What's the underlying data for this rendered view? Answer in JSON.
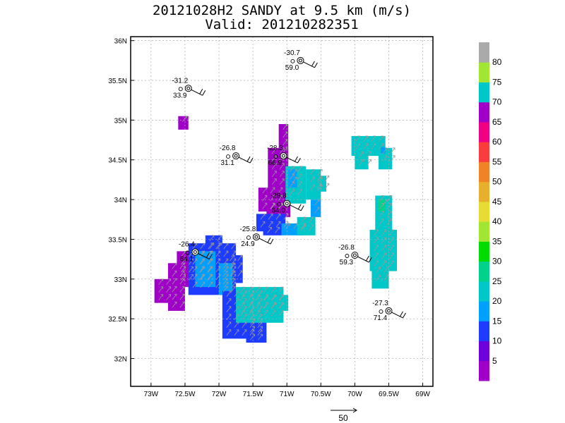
{
  "header": {
    "title": "20121028H2 SANDY at 9.5 km (m/s)",
    "valid": "Valid: 201210282351"
  },
  "chart_data": {
    "type": "heatmap",
    "xlabel": "",
    "ylabel": "",
    "xlim": [
      -73.3,
      -68.85
    ],
    "ylim": [
      31.65,
      36.05
    ],
    "x_ticks": [
      -73,
      -72.5,
      -72,
      -71.5,
      -71,
      -70.5,
      -70,
      -69.5,
      -69
    ],
    "x_tick_labels": [
      "73W",
      "72.5W",
      "72W",
      "71.5W",
      "71W",
      "70.5W",
      "70W",
      "69.5W",
      "69W"
    ],
    "y_ticks": [
      32,
      32.5,
      33,
      33.5,
      34,
      34.5,
      35,
      35.5,
      36
    ],
    "y_tick_labels": [
      "32N",
      "32.5N",
      "33N",
      "33.5N",
      "34N",
      "34.5N",
      "35N",
      "35.5N",
      "36N"
    ],
    "grid": true,
    "colorbar": {
      "labels": [
        "5",
        "10",
        "15",
        "20",
        "25",
        "30",
        "35",
        "40",
        "45",
        "50",
        "55",
        "60",
        "65",
        "70",
        "75",
        "80"
      ],
      "colors": [
        "#a000c8",
        "#6e00dc",
        "#1e3cff",
        "#00a0ff",
        "#00c8c8",
        "#00d28c",
        "#00dc00",
        "#a0e632",
        "#e6dc32",
        "#e6af2d",
        "#f08228",
        "#fa3c3c",
        "#f00082",
        "#a000c8",
        "#00c8c8",
        "#a0e632",
        "#aaaaaa"
      ]
    },
    "reference_vector": {
      "label": "50",
      "value": 50
    },
    "regions": [
      {
        "name": "north-tiny",
        "color": "#a000c8",
        "rects": [
          [
            -72.6,
            -72.45,
            34.88,
            35.05
          ]
        ]
      },
      {
        "name": "central-purple",
        "color": "#a000c8",
        "rects": [
          [
            -71.12,
            -70.98,
            34.45,
            34.95
          ],
          [
            -71.28,
            -70.98,
            34.1,
            34.65
          ],
          [
            -71.42,
            -71.0,
            33.85,
            34.15
          ],
          [
            -71.3,
            -70.95,
            33.78,
            33.95
          ]
        ]
      },
      {
        "name": "central-cyan",
        "color": "#00c8c8",
        "rects": [
          [
            -71.02,
            -70.72,
            33.95,
            34.42
          ],
          [
            -70.72,
            -70.5,
            34.0,
            34.38
          ],
          [
            -70.62,
            -70.42,
            34.1,
            34.3
          ]
        ]
      },
      {
        "name": "central-blue",
        "color": "#00a0ff",
        "rects": [
          [
            -70.98,
            -70.85,
            34.15,
            34.38
          ],
          [
            -70.65,
            -70.5,
            33.78,
            34.0
          ]
        ]
      },
      {
        "name": "central-south-band",
        "color": "#1e3cff",
        "rects": [
          [
            -71.45,
            -71.02,
            33.6,
            33.82
          ],
          [
            -71.35,
            -71.08,
            33.55,
            33.65
          ]
        ]
      },
      {
        "name": "central-south-cyan",
        "color": "#00a0ff",
        "rects": [
          [
            -71.08,
            -70.75,
            33.55,
            33.7
          ]
        ]
      },
      {
        "name": "central-south-teal",
        "color": "#00c8c8",
        "rects": [
          [
            -70.85,
            -70.58,
            33.55,
            33.78
          ]
        ]
      },
      {
        "name": "west-purple",
        "color": "#a000c8",
        "rects": [
          [
            -72.95,
            -72.7,
            32.7,
            33.0
          ],
          [
            -72.75,
            -72.5,
            32.6,
            33.2
          ],
          [
            -72.62,
            -72.4,
            32.9,
            33.35
          ]
        ]
      },
      {
        "name": "west-blue",
        "color": "#1e3cff",
        "rects": [
          [
            -72.45,
            -71.75,
            32.8,
            33.45
          ],
          [
            -72.2,
            -71.95,
            33.35,
            33.55
          ],
          [
            -71.9,
            -71.65,
            32.95,
            33.3
          ]
        ]
      },
      {
        "name": "west-cyan",
        "color": "#00a0ff",
        "rects": [
          [
            -72.35,
            -72.05,
            32.9,
            33.35
          ],
          [
            -72.0,
            -71.8,
            32.8,
            33.2
          ]
        ]
      },
      {
        "name": "southwest-blue",
        "color": "#1e3cff",
        "rects": [
          [
            -71.95,
            -71.35,
            32.25,
            32.85
          ],
          [
            -71.6,
            -71.3,
            32.2,
            32.5
          ]
        ]
      },
      {
        "name": "southwest-teal",
        "color": "#00c8c8",
        "rects": [
          [
            -71.75,
            -71.05,
            32.45,
            32.9
          ],
          [
            -71.4,
            -70.98,
            32.6,
            32.8
          ]
        ]
      },
      {
        "name": "northeast-teal",
        "color": "#00c8c8",
        "rects": [
          [
            -70.05,
            -69.55,
            34.55,
            34.8
          ],
          [
            -70.0,
            -69.8,
            34.38,
            34.6
          ],
          [
            -69.65,
            -69.45,
            34.38,
            34.65
          ]
        ]
      },
      {
        "name": "northeast-blue",
        "color": "#00a0ff",
        "rects": [
          [
            -69.62,
            -69.55,
            34.58,
            34.66
          ]
        ]
      },
      {
        "name": "east-teal",
        "color": "#00c8c8",
        "rects": [
          [
            -69.7,
            -69.45,
            33.6,
            34.05
          ],
          [
            -69.78,
            -69.38,
            33.1,
            33.62
          ],
          [
            -69.75,
            -69.5,
            32.88,
            33.15
          ]
        ]
      },
      {
        "name": "east-green",
        "color": "#00d28c",
        "rects": [
          [
            -69.65,
            -69.55,
            33.85,
            34.0
          ]
        ]
      }
    ],
    "observations": [
      {
        "lon": -72.45,
        "lat": 35.4,
        "label1": "-31.2",
        "label2": "33.9"
      },
      {
        "lon": -70.8,
        "lat": 35.75,
        "label1": "-30.7",
        "label2": "59.0"
      },
      {
        "lon": -71.75,
        "lat": 34.55,
        "label1": "-26.8",
        "label2": "31.1"
      },
      {
        "lon": -71.05,
        "lat": 34.55,
        "label1": "-28.3",
        "label2": "66.9"
      },
      {
        "lon": -71.0,
        "lat": 33.95,
        "label1": "-29.8",
        "label2": "64.0"
      },
      {
        "lon": -71.45,
        "lat": 33.53,
        "label1": "-25.8",
        "label2": "24.9"
      },
      {
        "lon": -72.35,
        "lat": 33.34,
        "label1": "-26.4",
        "label2": "64.1"
      },
      {
        "lon": -70.0,
        "lat": 33.3,
        "label1": "-26.8",
        "label2": "59.3"
      },
      {
        "lon": -69.5,
        "lat": 32.6,
        "label1": "-27.3",
        "label2": "71.4"
      }
    ]
  }
}
